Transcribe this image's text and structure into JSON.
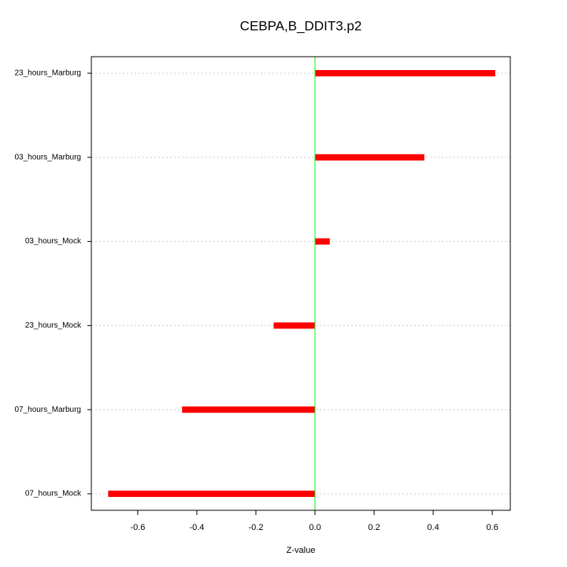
{
  "chart_data": {
    "type": "hbar",
    "title": "CEBPA,B_DDIT3.p2",
    "x_label": "Z-value",
    "categories": [
      "23_hours_Marburg",
      "03_hours_Marburg",
      "03_hours_Mock",
      "23_hours_Mock",
      "07_hours_Marburg",
      "07_hours_Mock"
    ],
    "values": [
      0.61,
      0.37,
      0.05,
      -0.14,
      -0.45,
      -0.7
    ],
    "color": "#ff0000",
    "zero_line_color": "#00ff00",
    "xlim": [
      -0.757,
      0.661
    ],
    "xticks": [
      -0.6,
      -0.4,
      -0.2,
      {
        "value": 0,
        "label": "0.0"
      },
      0.2,
      0.4,
      0.6
    ],
    "grid": true
  }
}
